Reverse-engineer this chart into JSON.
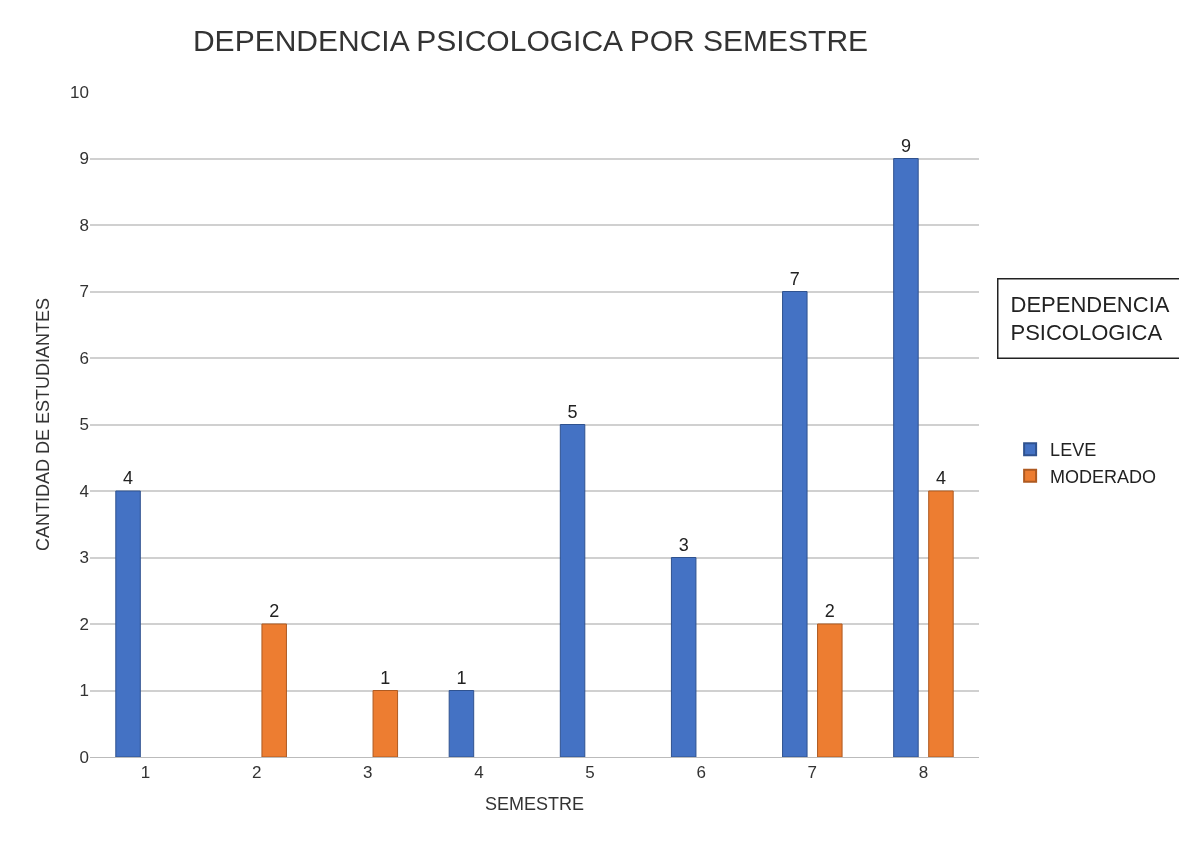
{
  "chart_data": {
    "type": "bar",
    "title": "DEPENDENCIA PSICOLOGICA POR SEMESTRE",
    "xlabel": "SEMESTRE",
    "ylabel": "CANTIDAD DE ESTUDIANTES",
    "legend_title": "DEPENDENCIA PSICOLOGICA",
    "categories": [
      "1",
      "2",
      "3",
      "4",
      "5",
      "6",
      "7",
      "8"
    ],
    "series": [
      {
        "name": "LEVE",
        "color": "#4472c4",
        "values": [
          4,
          null,
          null,
          1,
          5,
          3,
          7,
          9
        ]
      },
      {
        "name": "MODERADO",
        "color": "#ed7d31",
        "values": [
          null,
          2,
          1,
          null,
          null,
          null,
          2,
          4
        ]
      }
    ],
    "ylim": [
      0,
      10
    ],
    "yticks": [
      0,
      1,
      2,
      3,
      4,
      5,
      6,
      7,
      8,
      9,
      10
    ],
    "grid": "y",
    "legend": "right",
    "data_labels": true
  }
}
